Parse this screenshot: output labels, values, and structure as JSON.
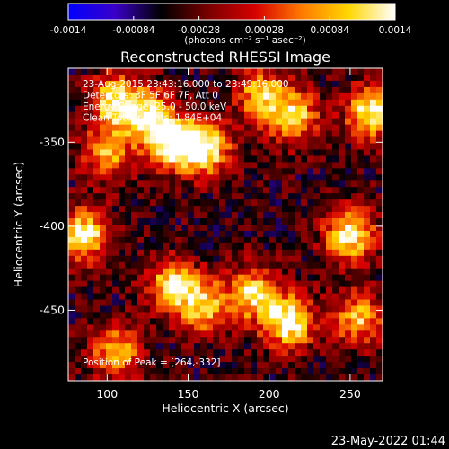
{
  "colorbar": {
    "ticks": [
      {
        "value": -0.0014,
        "label": "-0.0014"
      },
      {
        "value": -0.00084,
        "label": "-0.00084"
      },
      {
        "value": -0.00028,
        "label": "-0.00028"
      },
      {
        "value": 0.00028,
        "label": "0.00028"
      },
      {
        "value": 0.00084,
        "label": "0.00084"
      },
      {
        "value": 0.0014,
        "label": "0.0014"
      }
    ],
    "range": [
      -0.0014,
      0.0014
    ],
    "units_label": "(photons cm⁻² s⁻¹ asec⁻²)",
    "stops": [
      "#0000ff",
      "#3a00c8",
      "#000000",
      "#7a0000",
      "#d60000",
      "#ff7a00",
      "#ffd700",
      "#ffffff"
    ]
  },
  "chart_data": {
    "type": "heatmap",
    "title": "Reconstructed RHESSI Image",
    "xlabel": "Heliocentric X (arcsec)",
    "ylabel": "Heliocentric Y (arcsec)",
    "xlim": [
      76,
      270
    ],
    "ylim": [
      -492,
      -306
    ],
    "x_ticks": [
      100,
      150,
      200,
      250
    ],
    "y_ticks": [
      -350,
      -400,
      -450
    ],
    "info_lines": [
      "23-Aug-2015 23:43:16.000 to 23:49:16.000",
      "Detectors: 3F 5F 6F 7F, Att 0",
      "Energy Range: 25.0 - 50.0 keV",
      "Clean    Total counts: 1.84E+04"
    ],
    "peak_label": "Position of Peak = [264,-332]",
    "peak": [
      264,
      -332
    ],
    "value_range": [
      -0.0014,
      0.0014
    ],
    "sources": [
      {
        "x": 140,
        "y": -350,
        "peak": 0.0013
      },
      {
        "x": 160,
        "y": -354,
        "peak": 0.0014
      },
      {
        "x": 125,
        "y": -335,
        "peak": 0.0011
      },
      {
        "x": 105,
        "y": -325,
        "peak": 0.0012
      },
      {
        "x": 215,
        "y": -335,
        "peak": 0.00105
      },
      {
        "x": 195,
        "y": -322,
        "peak": 0.0009
      },
      {
        "x": 264,
        "y": -332,
        "peak": 0.0014
      },
      {
        "x": 86,
        "y": -405,
        "peak": 0.0013
      },
      {
        "x": 140,
        "y": -435,
        "peak": 0.0011
      },
      {
        "x": 160,
        "y": -448,
        "peak": 0.00095
      },
      {
        "x": 212,
        "y": -457,
        "peak": 0.0014
      },
      {
        "x": 190,
        "y": -440,
        "peak": 0.0011
      },
      {
        "x": 250,
        "y": -405,
        "peak": 0.0013
      },
      {
        "x": 255,
        "y": -455,
        "peak": 0.00095
      },
      {
        "x": 105,
        "y": -475,
        "peak": 0.0009
      },
      {
        "x": 100,
        "y": -357,
        "peak": 0.00085
      }
    ],
    "background": -0.00045
  },
  "timestamp": "23-May-2022 01:44"
}
